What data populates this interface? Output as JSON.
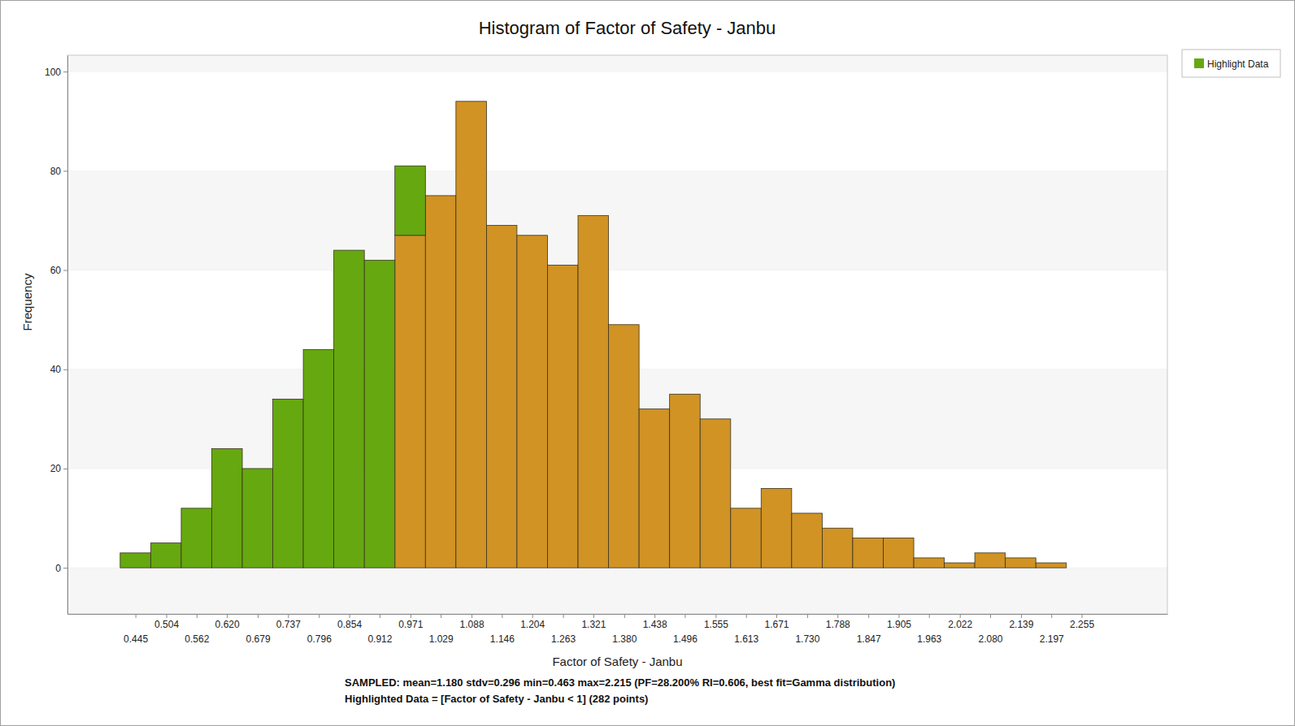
{
  "chart_data": {
    "type": "histogram",
    "title": "Histogram of Factor of Safety - Janbu",
    "x_label": "Factor of Safety - Janbu",
    "y_label": "Frequency",
    "annotations": [
      "SAMPLED: mean=1.180 stdv=0.296 min=0.463 max=2.215  (PF=28.200% RI=0.606, best fit=Gamma distribution)",
      "Highlighted Data = [Factor of Safety - Janbu < 1] (282 points)"
    ],
    "bins": [
      0.4158,
      0.4742,
      0.5326,
      0.591,
      0.6494,
      0.7077,
      0.7661,
      0.8245,
      0.8829,
      0.9413,
      0.9997,
      1.0581,
      1.1165,
      1.1748,
      1.2332,
      1.2916,
      1.35,
      1.4084,
      1.4668,
      1.5252,
      1.5836,
      1.6419,
      1.7003,
      1.7587,
      1.8171,
      1.8755,
      1.9339,
      1.9923,
      2.0506,
      2.109,
      2.1674,
      2.2258,
      2.2842
    ],
    "series": [
      {
        "color": "#d09324",
        "values": [
          0,
          0,
          0,
          0,
          0,
          0,
          0,
          0,
          0,
          67,
          75,
          94,
          69,
          67,
          61,
          71,
          49,
          32,
          35,
          30,
          12,
          16,
          11,
          8,
          6,
          6,
          2,
          1,
          3,
          2,
          1,
          0
        ]
      },
      {
        "name": "Highlight Data",
        "color": "#66a80f",
        "values": [
          3,
          5,
          12,
          24,
          20,
          34,
          44,
          64,
          62,
          14,
          0,
          0,
          0,
          0,
          0,
          0,
          0,
          0,
          0,
          0,
          0,
          0,
          0,
          0,
          0,
          0,
          0,
          0,
          0,
          0,
          0,
          0
        ]
      }
    ],
    "stacked": true,
    "xlim": [
      0.315,
      2.419
    ],
    "xticks": [
      0.445,
      0.504,
      0.562,
      {
        "value": 0.62,
        "label": "0.620"
      },
      0.679,
      0.737,
      0.796,
      0.854,
      0.912,
      0.971,
      1.029,
      1.088,
      1.146,
      1.204,
      1.263,
      1.321,
      {
        "value": 1.38,
        "label": "1.380"
      },
      1.438,
      1.496,
      1.555,
      1.613,
      1.671,
      {
        "value": 1.73,
        "label": "1.730"
      },
      1.788,
      1.847,
      1.905,
      1.963,
      2.022,
      {
        "value": 2.08,
        "label": "2.080"
      },
      2.139,
      2.197,
      2.255
    ],
    "ylim": [
      -9.3,
      103.3
    ],
    "yticks": [
      0,
      20,
      40,
      60,
      80,
      100
    ],
    "grid": true,
    "legend": "upper right"
  }
}
